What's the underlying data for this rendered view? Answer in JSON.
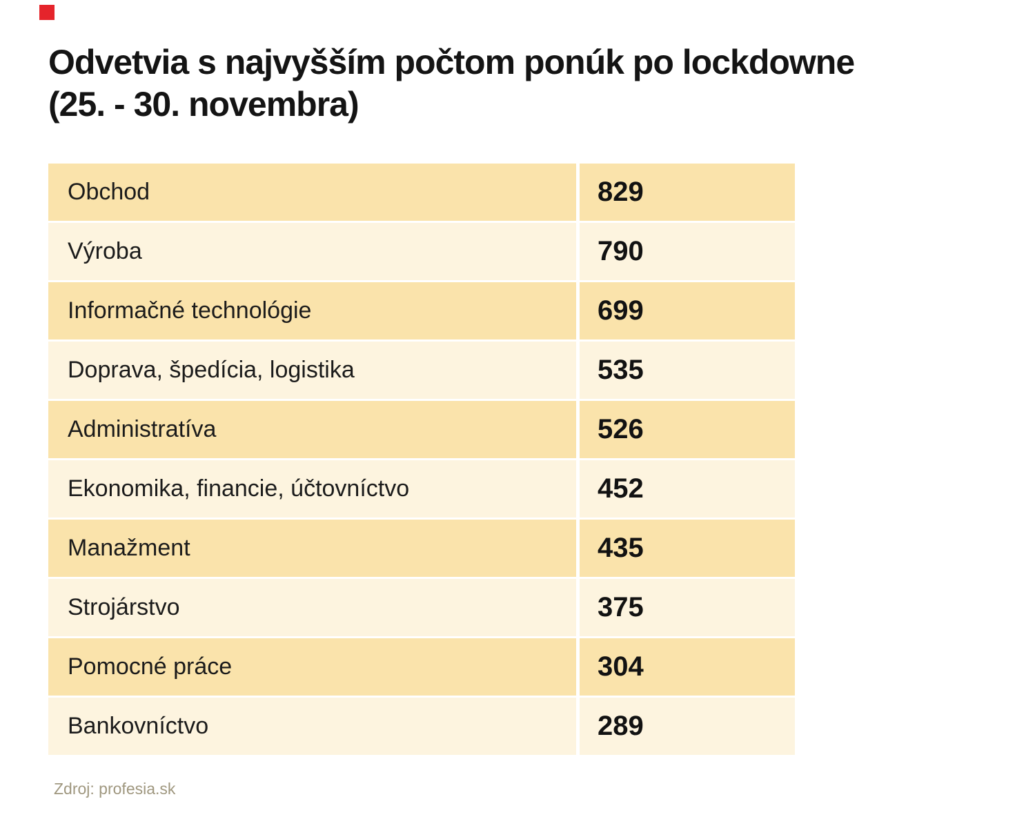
{
  "brand": {
    "logo_color": "#e5242b",
    "logo_shape": "red-square"
  },
  "header": {
    "title_line1": "Odvetvia s najvyšším počtom ponúk po lockdowne",
    "title_line2": "(25. - 30. novembra)"
  },
  "table": {
    "rows": [
      {
        "label": "Obchod",
        "value": "829"
      },
      {
        "label": "Výroba",
        "value": "790"
      },
      {
        "label": "Informačné technológie",
        "value": "699"
      },
      {
        "label": "Doprava, špedícia, logistika",
        "value": "535"
      },
      {
        "label": "Administratíva",
        "value": "526"
      },
      {
        "label": "Ekonomika, financie, účtovníctvo",
        "value": "452"
      },
      {
        "label": "Manažment",
        "value": "435"
      },
      {
        "label": "Strojárstvo",
        "value": "375"
      },
      {
        "label": "Pomocné práce",
        "value": "304"
      },
      {
        "label": "Bankovníctvo",
        "value": "289"
      }
    ],
    "colors": {
      "row_odd": "#fae3ab",
      "row_even": "#fdf4df",
      "text": "#1b1b1b"
    }
  },
  "footer": {
    "source": "Zdroj: profesia.sk"
  },
  "chart_data": {
    "type": "table",
    "title": "Odvetvia s najvyšším počtom ponúk po lockdowne (25. - 30. novembra)",
    "categories": [
      "Obchod",
      "Výroba",
      "Informačné technológie",
      "Doprava, špedícia, logistika",
      "Administratíva",
      "Ekonomika, financie, účtovníctvo",
      "Manažment",
      "Strojárstvo",
      "Pomocné práce",
      "Bankovníctvo"
    ],
    "values": [
      829,
      790,
      699,
      535,
      526,
      452,
      435,
      375,
      304,
      289
    ],
    "source": "Zdroj: profesia.sk",
    "layout": {
      "orientation": "rows",
      "value_column": "right",
      "alternating_row_shading": true
    }
  }
}
